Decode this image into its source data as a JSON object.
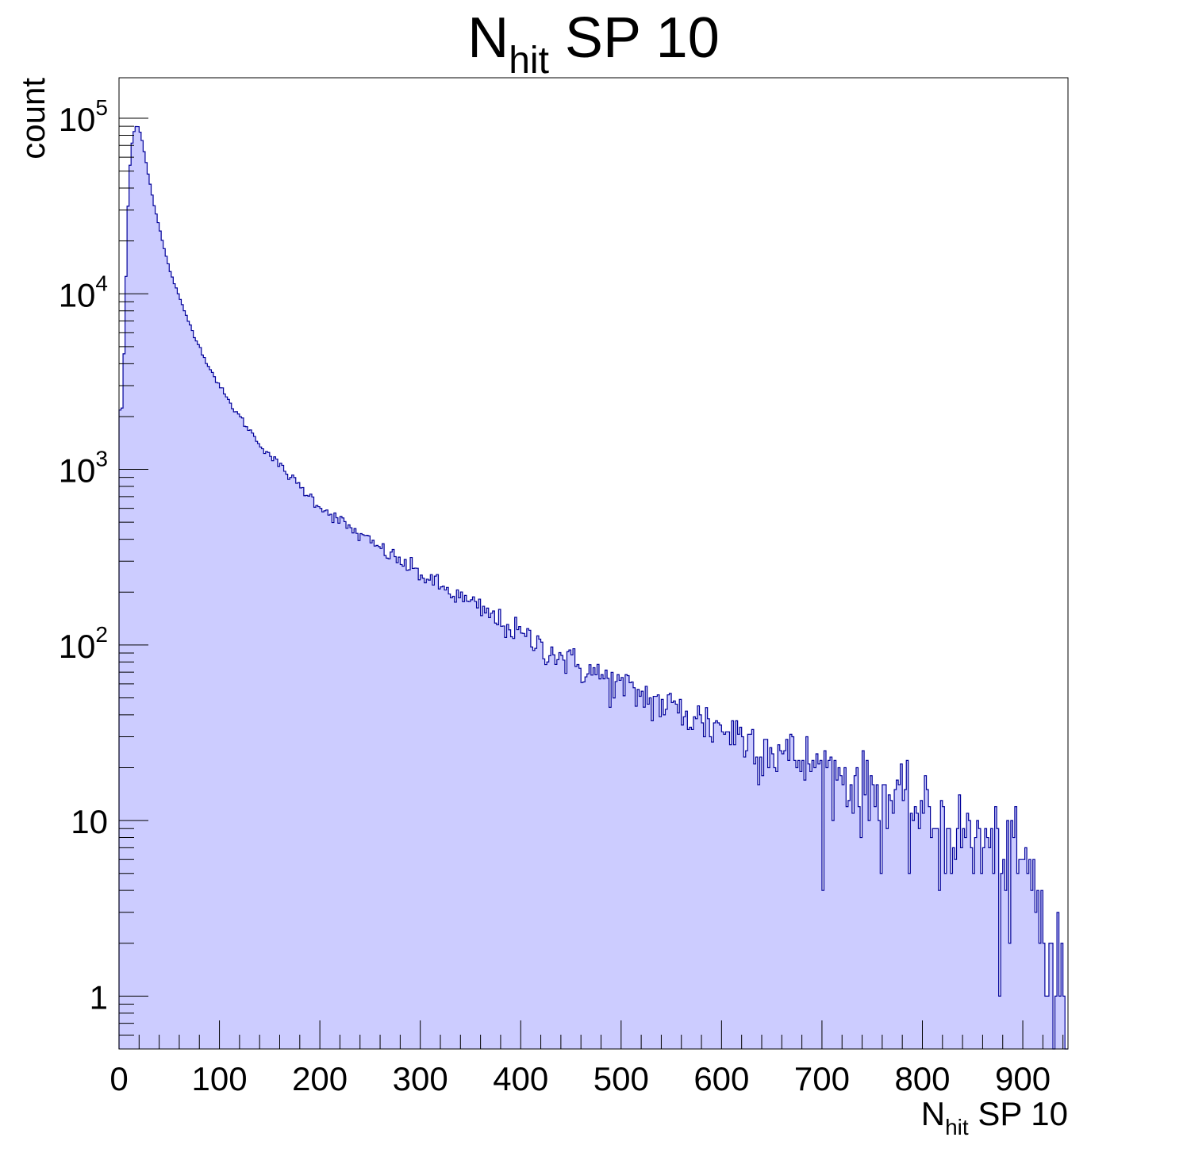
{
  "chart_data": {
    "type": "histogram",
    "title": {
      "main": "N",
      "sub": "hit",
      "rest": " SP 10"
    },
    "xlabel": {
      "main": "N",
      "sub": "hit",
      "rest": " SP 10"
    },
    "ylabel": "count",
    "xlim": [
      0,
      945
    ],
    "ylim": [
      0.5,
      170000
    ],
    "yscale": "log",
    "bin_width": 2,
    "x_ticks": [
      0,
      100,
      200,
      300,
      400,
      500,
      600,
      700,
      800,
      900
    ],
    "x_tick_labels": [
      "0",
      "100",
      "200",
      "300",
      "400",
      "500",
      "600",
      "700",
      "800",
      "900"
    ],
    "y_ticks": [
      {
        "value": 1,
        "base": "1",
        "exp": ""
      },
      {
        "value": 10,
        "base": "10",
        "exp": ""
      },
      {
        "value": 100,
        "base": "10",
        "exp": "2"
      },
      {
        "value": 1000,
        "base": "10",
        "exp": "3"
      },
      {
        "value": 10000,
        "base": "10",
        "exp": "4"
      },
      {
        "value": 100000,
        "base": "10",
        "exp": "5"
      }
    ],
    "shape_points": [
      [
        0,
        3000
      ],
      [
        2,
        1600
      ],
      [
        4,
        3000
      ],
      [
        6,
        7000
      ],
      [
        8,
        22000
      ],
      [
        10,
        45000
      ],
      [
        12,
        65000
      ],
      [
        14,
        80000
      ],
      [
        16,
        88000
      ],
      [
        18,
        91000
      ],
      [
        20,
        88000
      ],
      [
        22,
        80000
      ],
      [
        24,
        70000
      ],
      [
        26,
        60000
      ],
      [
        30,
        45000
      ],
      [
        35,
        32000
      ],
      [
        40,
        24000
      ],
      [
        45,
        18000
      ],
      [
        50,
        14000
      ],
      [
        60,
        9500
      ],
      [
        70,
        6800
      ],
      [
        80,
        5000
      ],
      [
        90,
        3800
      ],
      [
        100,
        3000
      ],
      [
        110,
        2400
      ],
      [
        120,
        2000
      ],
      [
        140,
        1400
      ],
      [
        160,
        1050
      ],
      [
        180,
        800
      ],
      [
        200,
        620
      ],
      [
        240,
        420
      ],
      [
        280,
        300
      ],
      [
        320,
        215
      ],
      [
        360,
        160
      ],
      [
        400,
        115
      ],
      [
        450,
        80
      ],
      [
        500,
        58
      ],
      [
        550,
        44
      ],
      [
        600,
        34
      ],
      [
        650,
        26
      ],
      [
        700,
        20
      ],
      [
        750,
        15
      ],
      [
        800,
        11
      ],
      [
        850,
        8
      ],
      [
        900,
        5.5
      ],
      [
        920,
        3
      ],
      [
        930,
        1.2
      ],
      [
        945,
        0.9
      ]
    ],
    "fill_color": "#ccccff",
    "line_color": "#000099"
  }
}
